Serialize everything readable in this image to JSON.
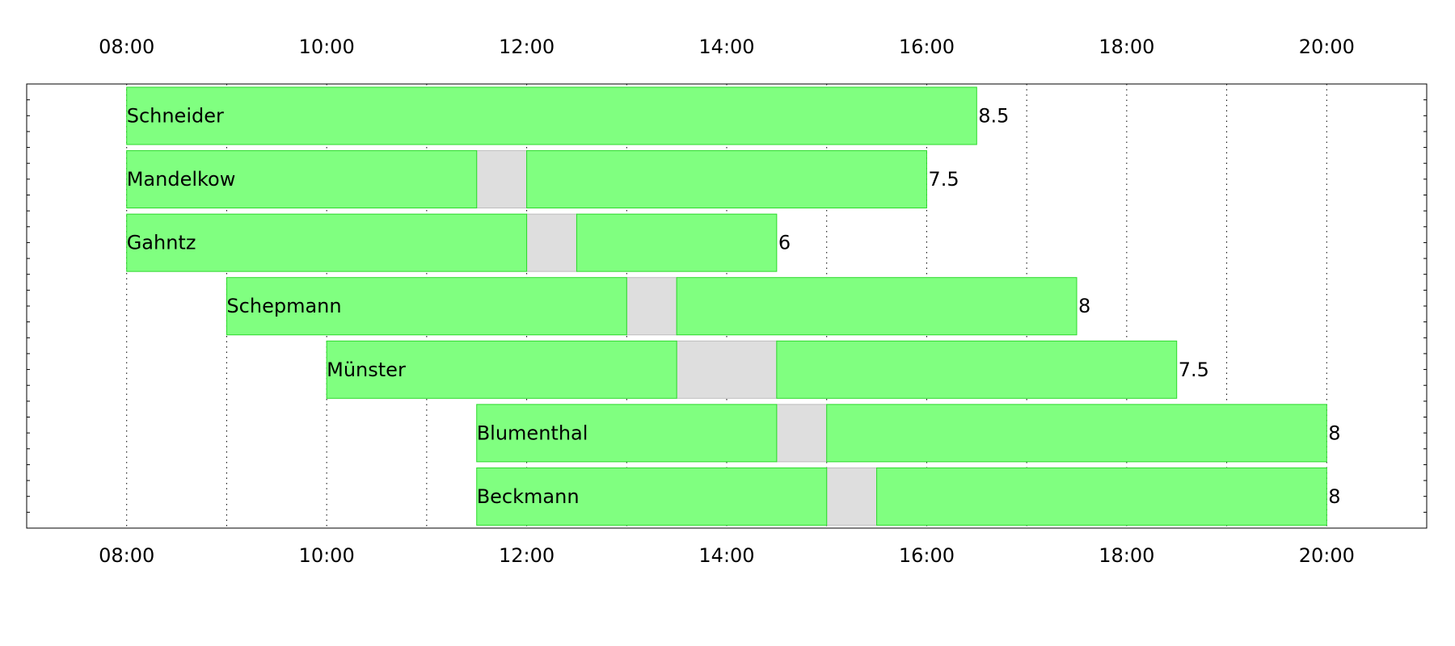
{
  "chart_data": {
    "type": "bar",
    "orientation": "horizontal-timeline",
    "title": "",
    "xlabel": "",
    "ylabel": "",
    "xlim": [
      "07:00",
      "21:00"
    ],
    "x_ticks": [
      "08:00",
      "10:00",
      "12:00",
      "14:00",
      "16:00",
      "18:00",
      "20:00"
    ],
    "grid": "vertical dotted, every hour",
    "colors": {
      "work": "#80ff80",
      "work_edge": "#2bd92b",
      "break": "#dedede",
      "break_edge": "#bdbdbd"
    },
    "rows": [
      {
        "name": "Schneider",
        "work": [
          [
            "08:00",
            "16:30"
          ]
        ],
        "break": [],
        "hours": "8.5"
      },
      {
        "name": "Mandelkow",
        "work": [
          [
            "08:00",
            "11:30"
          ],
          [
            "12:00",
            "16:00"
          ]
        ],
        "break": [
          [
            "11:30",
            "12:00"
          ]
        ],
        "hours": "7.5"
      },
      {
        "name": "Gahntz",
        "work": [
          [
            "08:00",
            "12:00"
          ],
          [
            "12:30",
            "14:30"
          ]
        ],
        "break": [
          [
            "12:00",
            "12:30"
          ]
        ],
        "hours": "6"
      },
      {
        "name": "Schepmann",
        "work": [
          [
            "09:00",
            "13:00"
          ],
          [
            "13:30",
            "17:30"
          ]
        ],
        "break": [
          [
            "13:00",
            "13:30"
          ]
        ],
        "hours": "8"
      },
      {
        "name": "Münster",
        "work": [
          [
            "10:00",
            "13:30"
          ],
          [
            "14:30",
            "18:30"
          ]
        ],
        "break": [
          [
            "13:30",
            "14:30"
          ]
        ],
        "hours": "7.5"
      },
      {
        "name": "Blumenthal",
        "work": [
          [
            "11:30",
            "14:30"
          ],
          [
            "15:00",
            "20:00"
          ]
        ],
        "break": [
          [
            "14:30",
            "15:00"
          ]
        ],
        "hours": "8"
      },
      {
        "name": "Beckmann",
        "work": [
          [
            "11:30",
            "15:00"
          ],
          [
            "15:30",
            "20:00"
          ]
        ],
        "break": [
          [
            "15:00",
            "15:30"
          ]
        ],
        "hours": "8"
      }
    ]
  }
}
